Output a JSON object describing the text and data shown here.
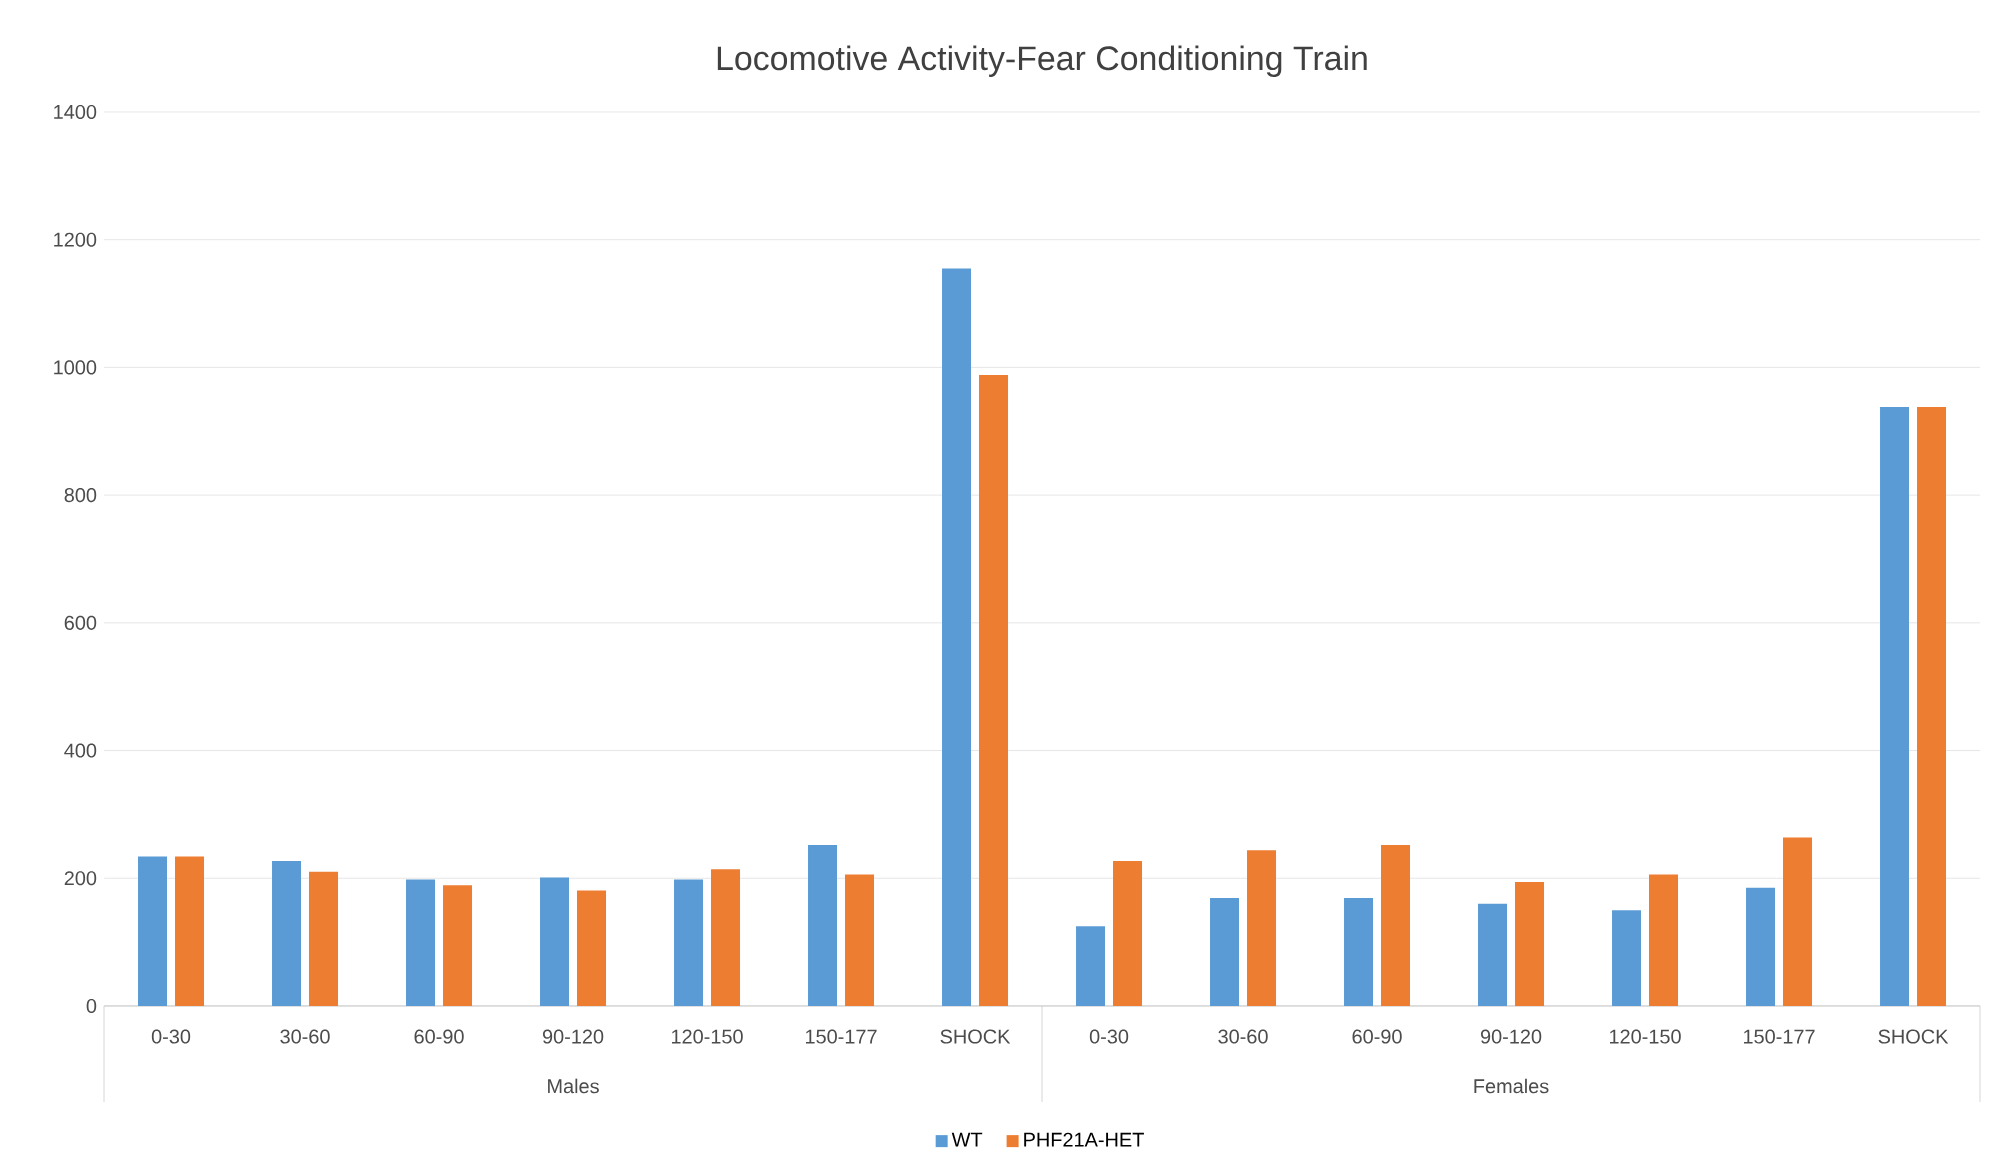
{
  "chart_data": {
    "type": "bar",
    "title": "Locomotive Activity-Fear Conditioning Train",
    "categories": [
      "0-30",
      "30-60",
      "60-90",
      "90-120",
      "120-150",
      "150-177",
      "SHOCK",
      "0-30",
      "30-60",
      "60-90",
      "90-120",
      "120-150",
      "150-177",
      "SHOCK"
    ],
    "series": [
      {
        "name": "WT",
        "color": "#5b9bd5",
        "values": [
          234,
          227,
          198,
          201,
          198,
          252,
          1155,
          125,
          169,
          169,
          160,
          150,
          185,
          938
        ]
      },
      {
        "name": "PHF21A-HET",
        "color": "#ed7d31",
        "values": [
          234,
          210,
          189,
          181,
          214,
          206,
          988,
          227,
          244,
          252,
          194,
          206,
          264,
          938
        ]
      }
    ],
    "annotations": [
      "Males",
      "Females"
    ],
    "ylim": [
      0,
      1400
    ],
    "yticks": [
      0,
      200,
      400,
      600,
      800,
      1000,
      1200,
      1400
    ],
    "grid": "y",
    "legend": "bottom"
  }
}
